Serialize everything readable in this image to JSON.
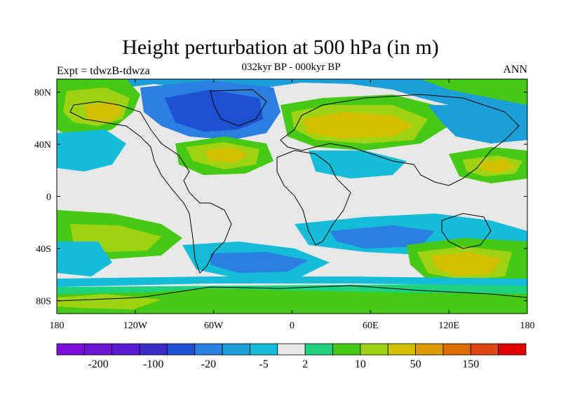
{
  "title": "Height perturbation at 500 hPa (in m)",
  "subtitle": "032kyr BP - 000kyr BP",
  "left_label": "Expt = tdwzB-tdwza",
  "right_label": "ANN",
  "lon_ticks": [
    "180",
    "120W",
    "60W",
    "0",
    "60E",
    "120E",
    "180"
  ],
  "lat_ticks": [
    "80N",
    "40N",
    "0",
    "40S",
    "80S"
  ],
  "colorbar": {
    "colors": [
      "#7a10d8",
      "#6a14d4",
      "#5a1ad2",
      "#3c2ac8",
      "#1e50d2",
      "#2c7ee0",
      "#1c9ed8",
      "#14bcd8",
      "#e8e8e8",
      "#1ed27e",
      "#46c814",
      "#a0d214",
      "#d2c000",
      "#dc9a00",
      "#dc6e00",
      "#dc4614",
      "#e00000"
    ],
    "labels": [
      "-200",
      "-100",
      "-20",
      "-5",
      "2",
      "10",
      "50",
      "150"
    ]
  },
  "field_colors": {
    "neutral": "#e8e8e8",
    "strong_negative": "#1e50d2",
    "negative": "#2c7ee0",
    "weak_negative": "#14bcd8",
    "weak_positive": "#1ed27e",
    "positive": "#46c814",
    "strong_positive": "#a0d214",
    "peak_positive": "#d2c000"
  }
}
